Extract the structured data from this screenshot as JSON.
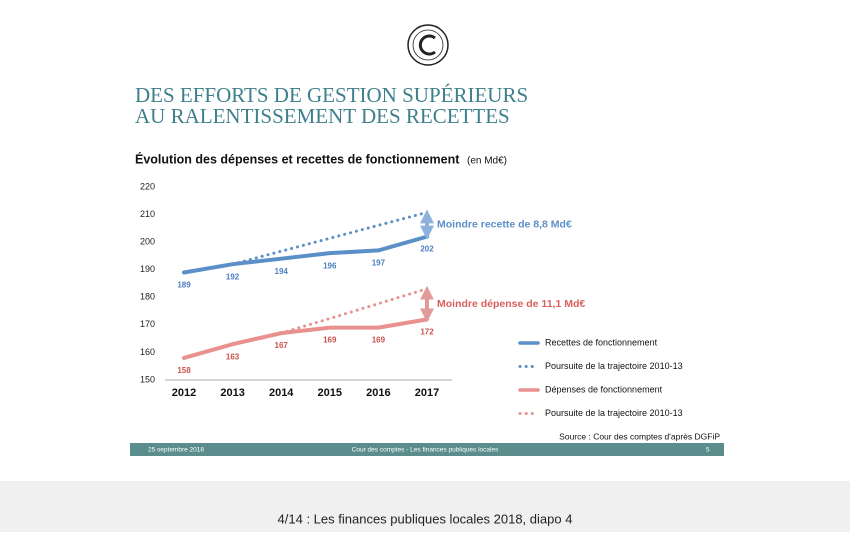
{
  "slide": {
    "heading": [
      "DES EFFORTS DE GESTION SUPÉRIEURS",
      "AU RALENTISSEMENT DES RECETTES"
    ],
    "source": "Source : Cour des comptes d'après DGFiP",
    "footer": {
      "date": "25 septembre 2018",
      "center": "Cour des comptes  - Les finances publiques locales",
      "page": "5"
    }
  },
  "caption": "4/14 : Les finances publiques locales 2018, diapo 4",
  "chart_data": {
    "type": "line",
    "title": "Évolution des dépenses et recettes de fonctionnement",
    "unit": "(en Md€)",
    "categories": [
      "2012",
      "2013",
      "2014",
      "2015",
      "2016",
      "2017"
    ],
    "ylim": [
      150,
      220
    ],
    "yticks": [
      150,
      160,
      170,
      180,
      190,
      200,
      210,
      220
    ],
    "legend": "right",
    "series": [
      {
        "name": "Recettes  de fonctionnement",
        "color": "#5b8fc7",
        "style": "solid",
        "labels": true,
        "values": [
          189,
          192,
          194,
          196,
          197,
          202
        ]
      },
      {
        "name": "Poursuite de la trajectoire 2010-13",
        "color": "#5b8fc7",
        "style": "dotted",
        "labels": false,
        "values": [
          null,
          192,
          196.7,
          201.4,
          206.1,
          210.8
        ]
      },
      {
        "name": "Dépenses de fonctionnement",
        "color": "#e8918f",
        "style": "solid",
        "labels": true,
        "values": [
          158,
          163,
          167,
          169,
          169,
          172
        ]
      },
      {
        "name": "Poursuite de la trajectoire 2010-13",
        "color": "#e8918f",
        "style": "dotted",
        "labels": false,
        "values": [
          null,
          null,
          167,
          172.3,
          177.7,
          183.1
        ]
      }
    ],
    "annotations": [
      {
        "text": "Moindre recette de 8,8 Md€",
        "color": "#5b8fc7"
      },
      {
        "text": "Moindre dépense de 11,1 Md€",
        "color": "#d9605c"
      }
    ]
  }
}
